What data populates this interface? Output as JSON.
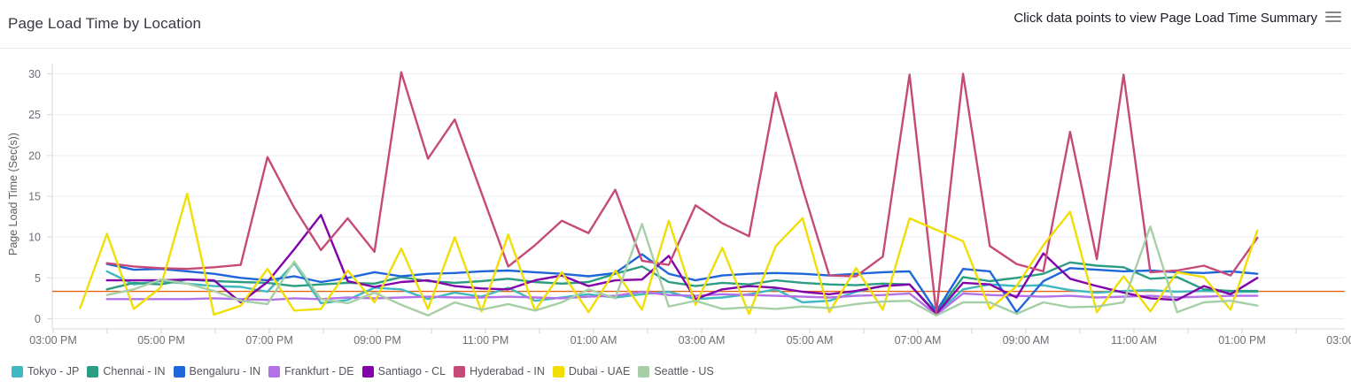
{
  "header": {
    "title": "Page Load Time by Location",
    "hint": "Click data points to view Page Load Time Summary",
    "menu_icon": "hamburger-icon"
  },
  "chart_data": {
    "type": "line",
    "title": "Page Load Time by Location",
    "xlabel": "",
    "ylabel": "Page Load Time (Sec(s))",
    "ylim": [
      0,
      30
    ],
    "y_ticks": [
      0,
      5,
      10,
      15,
      20,
      25,
      30
    ],
    "grid": true,
    "legend_position": "bottom",
    "x_axis_tick_labels": [
      "03:00 PM",
      "05:00 PM",
      "07:00 PM",
      "09:00 PM",
      "11:00 PM",
      "01:00 AM",
      "03:00 AM",
      "05:00 AM",
      "07:00 AM",
      "09:00 AM",
      "11:00 AM",
      "01:00 PM",
      "03:00 PM"
    ],
    "threshold": {
      "value": 3.35,
      "color": "#e26310"
    },
    "x": [
      "03:30 PM",
      "04:00 PM",
      "04:30 PM",
      "05:00 PM",
      "05:30 PM",
      "06:00 PM",
      "06:30 PM",
      "07:00 PM",
      "07:30 PM",
      "08:00 PM",
      "08:30 PM",
      "09:00 PM",
      "09:30 PM",
      "10:00 PM",
      "10:30 PM",
      "11:00 PM",
      "11:30 PM",
      "12:00 AM",
      "12:30 AM",
      "01:00 AM",
      "01:30 AM",
      "02:00 AM",
      "02:30 AM",
      "03:00 AM",
      "03:30 AM",
      "04:00 AM",
      "04:30 AM",
      "05:00 AM",
      "05:30 AM",
      "06:00 AM",
      "06:30 AM",
      "07:00 AM",
      "07:30 AM",
      "08:00 AM",
      "08:30 AM",
      "09:00 AM",
      "09:30 AM",
      "10:00 AM",
      "10:30 AM",
      "11:00 AM",
      "11:30 AM",
      "12:00 PM",
      "12:30 PM",
      "01:00 PM",
      "01:30 PM"
    ],
    "series": [
      {
        "name": "Tokyo - JP",
        "color": "#3fb8c1",
        "values": [
          null,
          5.8,
          4.2,
          4.6,
          4.3,
          4.0,
          3.9,
          3.3,
          6.8,
          1.9,
          2.3,
          3.8,
          3.6,
          2.4,
          3.2,
          2.7,
          3.8,
          2.2,
          2.6,
          3.0,
          2.6,
          3.0,
          3.3,
          2.4,
          2.6,
          3.0,
          3.6,
          2.0,
          2.2,
          3.3,
          4.0,
          4.2,
          0.6,
          3.6,
          4.2,
          4.0,
          4.1,
          3.5,
          3.2,
          3.4,
          3.5,
          3.3,
          3.4,
          3.3,
          3.3
        ]
      },
      {
        "name": "Chennai - IN",
        "color": "#2a9d83",
        "values": [
          null,
          3.6,
          4.4,
          4.2,
          4.8,
          4.6,
          4.5,
          4.4,
          4.0,
          4.2,
          4.4,
          4.3,
          5.1,
          4.6,
          4.4,
          4.6,
          4.9,
          4.5,
          4.3,
          4.5,
          5.5,
          6.4,
          4.5,
          4.0,
          4.4,
          4.2,
          4.7,
          4.4,
          4.2,
          4.1,
          4.3,
          4.2,
          0.7,
          5.1,
          4.6,
          5.0,
          5.5,
          6.9,
          6.5,
          6.3,
          4.9,
          5.1,
          3.6,
          3.4,
          3.4
        ]
      },
      {
        "name": "Bengaluru - IN",
        "color": "#2066db",
        "values": [
          null,
          6.7,
          6.0,
          6.1,
          5.8,
          5.5,
          5.0,
          4.7,
          5.2,
          4.5,
          5.0,
          5.7,
          5.2,
          5.5,
          5.6,
          5.8,
          5.9,
          5.7,
          5.5,
          5.2,
          5.6,
          7.9,
          5.5,
          4.7,
          5.3,
          5.5,
          5.6,
          5.5,
          5.3,
          5.5,
          5.7,
          5.8,
          0.9,
          6.1,
          5.8,
          0.8,
          4.6,
          6.2,
          6.0,
          5.8,
          5.9,
          5.7,
          5.6,
          5.8,
          5.5
        ]
      },
      {
        "name": "Frankfurt - DE",
        "color": "#b271e8",
        "values": [
          null,
          2.4,
          2.4,
          2.4,
          2.4,
          2.5,
          2.4,
          2.3,
          2.5,
          2.4,
          2.6,
          2.5,
          2.6,
          2.7,
          2.6,
          2.6,
          2.7,
          2.6,
          2.5,
          2.7,
          2.8,
          3.3,
          2.9,
          2.8,
          3.0,
          2.9,
          2.8,
          2.7,
          2.6,
          2.8,
          2.9,
          3.1,
          0.5,
          3.1,
          2.9,
          2.8,
          2.7,
          2.8,
          2.6,
          2.7,
          2.8,
          2.6,
          2.7,
          2.8,
          2.8
        ]
      },
      {
        "name": "Santiago - CL",
        "color": "#8303ab",
        "values": [
          null,
          4.7,
          4.7,
          4.7,
          4.8,
          4.7,
          2.0,
          4.5,
          8.5,
          12.7,
          4.6,
          3.9,
          4.5,
          4.7,
          4.0,
          3.7,
          3.6,
          4.7,
          5.3,
          4.0,
          4.7,
          4.8,
          7.7,
          2.4,
          3.6,
          4.0,
          3.8,
          3.3,
          3.0,
          3.4,
          4.0,
          4.2,
          0.6,
          4.4,
          4.2,
          2.6,
          8.0,
          4.9,
          4.0,
          3.2,
          2.5,
          2.3,
          4.0,
          3.0,
          5.0
        ]
      },
      {
        "name": "Hyderabad - IN",
        "color": "#c64a79",
        "values": [
          null,
          6.8,
          6.4,
          6.2,
          6.1,
          6.3,
          6.6,
          19.8,
          13.6,
          8.4,
          12.3,
          8.2,
          30.2,
          19.6,
          24.4,
          15.4,
          6.4,
          9.0,
          12.0,
          10.5,
          15.8,
          7.1,
          6.6,
          13.9,
          11.7,
          10.1,
          27.7,
          16.0,
          5.3,
          5.2,
          7.6,
          29.9,
          0.7,
          30.0,
          8.9,
          6.7,
          5.8,
          22.9,
          7.3,
          29.9,
          5.7,
          5.9,
          6.5,
          5.3,
          9.9
        ]
      },
      {
        "name": "Dubai - UAE",
        "color": "#f0de04",
        "values": [
          1.3,
          10.4,
          1.2,
          3.8,
          15.3,
          0.5,
          1.6,
          6.1,
          1.0,
          1.2,
          5.9,
          2.0,
          8.6,
          1.2,
          10.0,
          0.9,
          10.3,
          1.0,
          5.7,
          0.8,
          5.9,
          1.1,
          12.0,
          1.7,
          8.7,
          0.6,
          8.9,
          12.3,
          0.8,
          6.2,
          1.1,
          12.3,
          10.9,
          9.5,
          1.2,
          4.0,
          9.0,
          13.1,
          0.8,
          5.2,
          0.9,
          5.7,
          5.1,
          1.1,
          10.8
        ]
      },
      {
        "name": "Seattle - US",
        "color": "#a7cfa7",
        "values": [
          null,
          2.9,
          3.6,
          4.8,
          4.3,
          3.4,
          2.2,
          1.8,
          7.0,
          2.4,
          1.9,
          3.2,
          1.7,
          0.4,
          2.0,
          1.1,
          1.8,
          1.0,
          2.0,
          3.6,
          2.5,
          11.6,
          1.5,
          2.2,
          1.2,
          1.4,
          1.2,
          1.5,
          1.3,
          1.8,
          2.1,
          2.2,
          0.4,
          2.0,
          2.0,
          0.6,
          2.0,
          1.4,
          1.5,
          2.0,
          11.3,
          0.8,
          2.0,
          2.2,
          1.6
        ]
      }
    ]
  }
}
